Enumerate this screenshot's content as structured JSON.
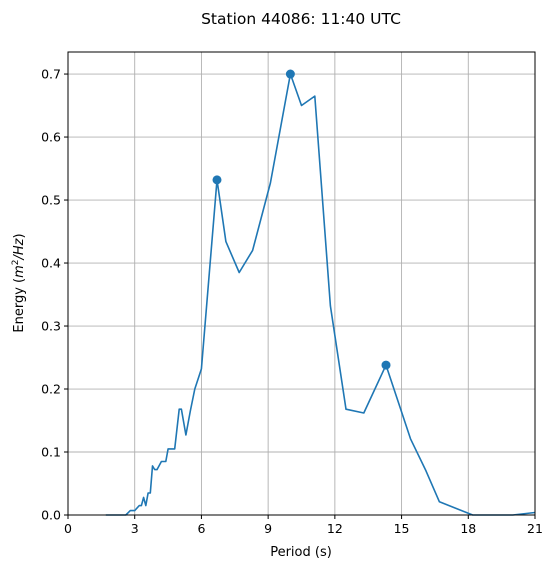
{
  "chart_data": {
    "type": "line",
    "title": "Station 44086: 11:40 UTC",
    "xlabel": "Period (s)",
    "ylabel": "Energy (m²/Hz)",
    "ylabel_prefix": "Energy (",
    "ylabel_unit": "m",
    "ylabel_sup": "2",
    "ylabel_rest": "/Hz",
    "ylabel_suffix": ")",
    "xlim": [
      0,
      21
    ],
    "ylim": [
      0,
      0.735
    ],
    "xticks": [
      0,
      3,
      6,
      9,
      12,
      15,
      18,
      21
    ],
    "yticks": [
      0.0,
      0.1,
      0.2,
      0.3,
      0.4,
      0.5,
      0.6,
      0.7
    ],
    "xtick_labels": [
      "0",
      "3",
      "6",
      "9",
      "12",
      "15",
      "18",
      "21"
    ],
    "ytick_labels": [
      "0.0",
      "0.1",
      "0.2",
      "0.3",
      "0.4",
      "0.5",
      "0.6",
      "0.7"
    ],
    "grid": true,
    "color": "#1f77b4",
    "series": [
      {
        "x": [
          1.7,
          2.6,
          2.8,
          3.0,
          3.2,
          3.3,
          3.4,
          3.5,
          3.6,
          3.7,
          3.8,
          3.9,
          4.0,
          4.2,
          4.4,
          4.5,
          4.7,
          4.8,
          5.0,
          5.1,
          5.3,
          5.5,
          5.7,
          6.0,
          6.7,
          7.1,
          7.7,
          8.3,
          9.1,
          10.0,
          10.5,
          11.1,
          11.8,
          12.5,
          13.3,
          14.3,
          15.4,
          16.1,
          16.7,
          18.2,
          20.0,
          21.0
        ],
        "y": [
          0.0,
          0.0,
          0.007,
          0.007,
          0.015,
          0.015,
          0.028,
          0.015,
          0.035,
          0.035,
          0.078,
          0.072,
          0.072,
          0.085,
          0.085,
          0.105,
          0.105,
          0.105,
          0.168,
          0.168,
          0.127,
          0.165,
          0.2,
          0.232,
          0.532,
          0.434,
          0.385,
          0.42,
          0.527,
          0.7,
          0.65,
          0.665,
          0.332,
          0.168,
          0.162,
          0.238,
          0.121,
          0.07,
          0.021,
          0.0,
          0.0,
          0.004
        ]
      }
    ],
    "markers": [
      {
        "x": 6.7,
        "y": 0.532
      },
      {
        "x": 10.0,
        "y": 0.7
      },
      {
        "x": 14.3,
        "y": 0.238
      }
    ]
  }
}
